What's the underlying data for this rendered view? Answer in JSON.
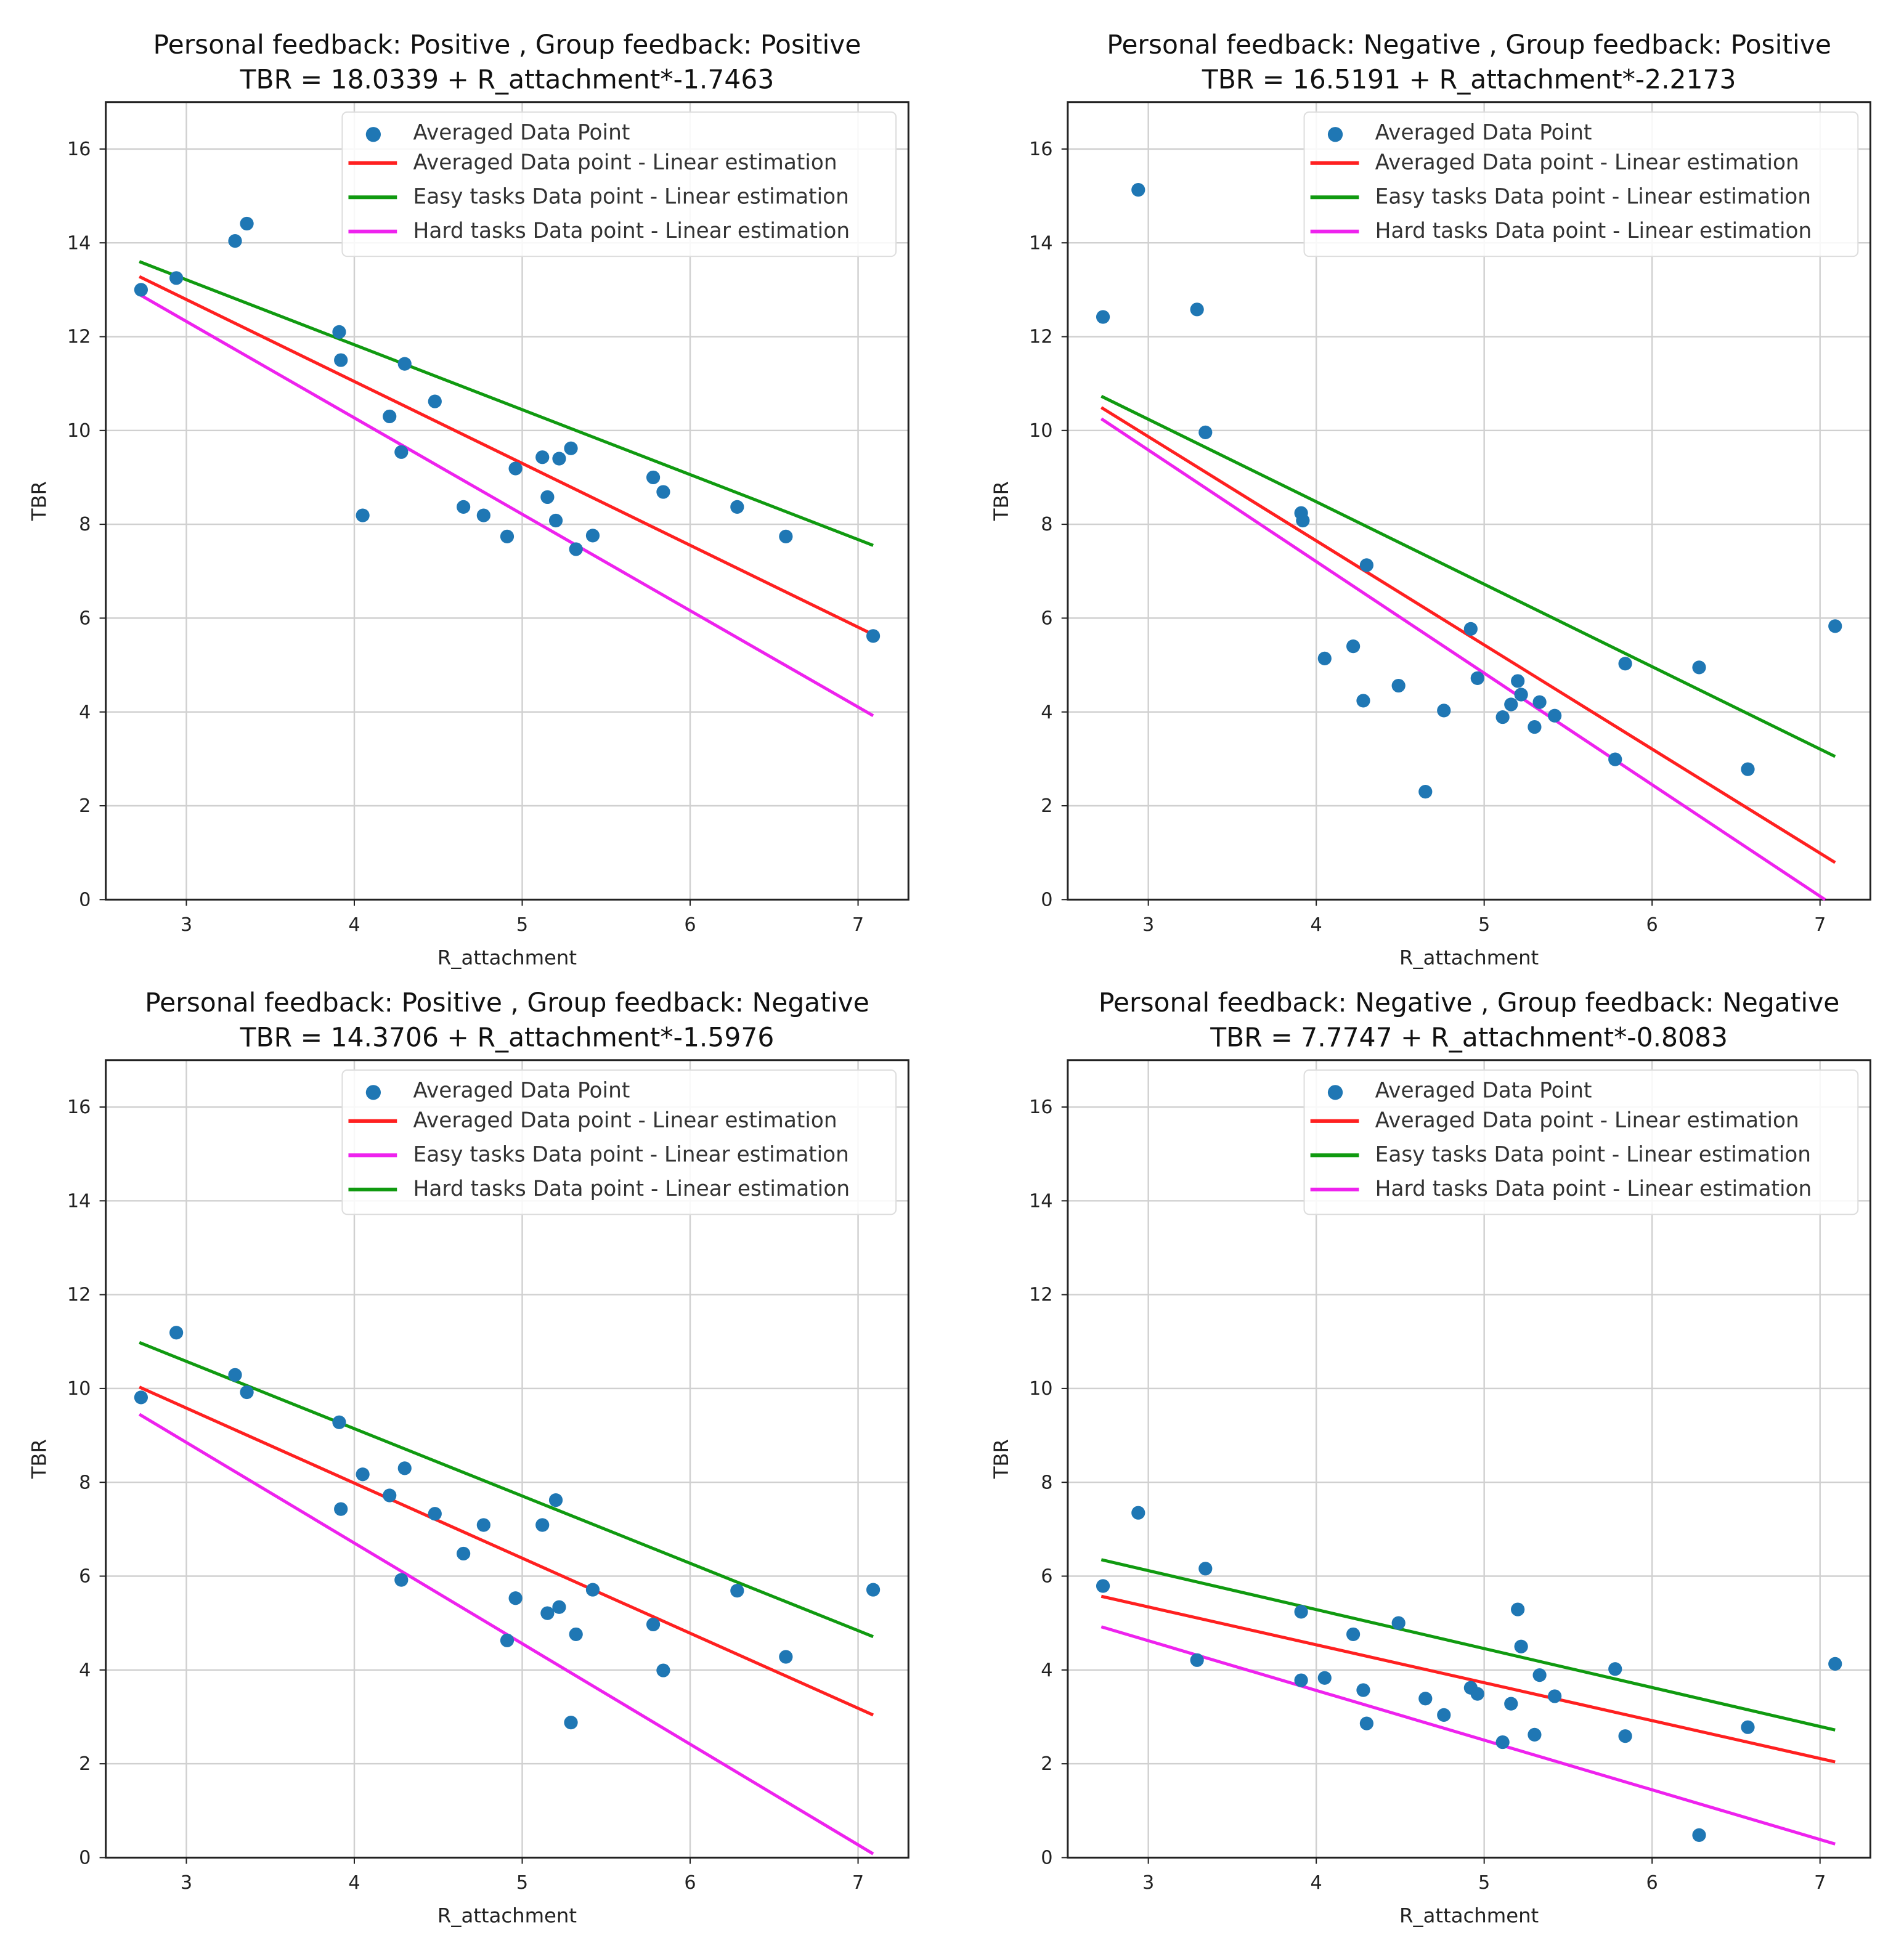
{
  "chart_data": [
    {
      "type": "scatter",
      "title": "Personal feedback: Positive , Group feedback: Positive",
      "subtitle": "TBR = 18.0339 + R_attachment*-1.7463",
      "xlabel": "R_attachment",
      "ylabel": "TBR",
      "xlim": [
        2.52,
        7.3
      ],
      "ylim": [
        0,
        17
      ],
      "xticks": [
        3,
        4,
        5,
        6,
        7
      ],
      "yticks": [
        0,
        2,
        4,
        6,
        8,
        10,
        12,
        14,
        16
      ],
      "grid": true,
      "legend_position": "top-right",
      "points": {
        "name": "Averaged Data Point",
        "color": "#1f77b4",
        "x": [
          2.73,
          2.94,
          3.29,
          3.36,
          3.91,
          3.92,
          4.05,
          4.21,
          4.28,
          4.3,
          4.48,
          4.65,
          4.77,
          4.91,
          4.96,
          5.12,
          5.15,
          5.2,
          5.22,
          5.29,
          5.32,
          5.42,
          5.78,
          5.84,
          6.28,
          6.57,
          7.09
        ],
        "y": [
          13.0,
          13.25,
          14.04,
          14.41,
          12.1,
          11.5,
          8.19,
          10.3,
          9.54,
          11.42,
          10.62,
          8.37,
          8.19,
          7.74,
          9.19,
          9.43,
          8.58,
          8.08,
          9.4,
          9.62,
          7.47,
          7.76,
          9.0,
          8.69,
          8.37,
          7.74,
          5.62
        ]
      },
      "lines": [
        {
          "name": "Averaged Data point  - Linear estimation",
          "color": "#ff2020",
          "x": [
            2.72,
            7.09
          ],
          "y": [
            13.28,
            5.65
          ]
        },
        {
          "name": "Easy tasks Data point  - Linear estimation",
          "color": "#109a10",
          "x": [
            2.72,
            7.09
          ],
          "y": [
            13.6,
            7.55
          ]
        },
        {
          "name": "Hard tasks Data point  - Linear estimation",
          "color": "#ee22ee",
          "x": [
            2.72,
            7.09
          ],
          "y": [
            12.9,
            3.92
          ]
        }
      ]
    },
    {
      "type": "scatter",
      "title": "Personal feedback: Negative , Group feedback: Positive",
      "subtitle": "TBR = 16.5191 + R_attachment*-2.2173",
      "xlabel": "R_attachment",
      "ylabel": "TBR",
      "xlim": [
        2.52,
        7.3
      ],
      "ylim": [
        0,
        17
      ],
      "xticks": [
        3,
        4,
        5,
        6,
        7
      ],
      "yticks": [
        0,
        2,
        4,
        6,
        8,
        10,
        12,
        14,
        16
      ],
      "grid": true,
      "legend_position": "top-right",
      "points": {
        "name": "Averaged Data Point",
        "color": "#1f77b4",
        "x": [
          2.73,
          2.94,
          3.29,
          3.34,
          3.91,
          3.92,
          4.05,
          4.22,
          4.28,
          4.3,
          4.49,
          4.65,
          4.76,
          4.92,
          4.96,
          5.11,
          5.16,
          5.2,
          5.22,
          5.3,
          5.33,
          5.42,
          5.78,
          5.84,
          6.28,
          6.57,
          7.09
        ],
        "y": [
          12.42,
          15.13,
          12.58,
          9.96,
          8.24,
          8.08,
          5.14,
          5.4,
          4.24,
          7.13,
          4.56,
          2.3,
          4.03,
          5.77,
          4.72,
          3.89,
          4.16,
          4.66,
          4.37,
          3.68,
          4.21,
          3.92,
          2.99,
          5.03,
          4.95,
          2.78,
          5.83
        ]
      },
      "lines": [
        {
          "name": "Averaged Data point  - Linear estimation",
          "color": "#ff2020",
          "x": [
            2.72,
            7.09
          ],
          "y": [
            10.49,
            0.79
          ]
        },
        {
          "name": "Easy tasks Data point  - Linear estimation",
          "color": "#109a10",
          "x": [
            2.72,
            7.09
          ],
          "y": [
            10.73,
            3.05
          ]
        },
        {
          "name": "Hard tasks Data point  - Linear estimation",
          "color": "#ee22ee",
          "x": [
            2.72,
            7.03
          ],
          "y": [
            10.25,
            0.0
          ]
        }
      ]
    },
    {
      "type": "scatter",
      "title": "Personal feedback: Positive , Group feedback: Negative",
      "subtitle": "TBR = 14.3706 + R_attachment*-1.5976",
      "xlabel": "R_attachment",
      "ylabel": "TBR",
      "xlim": [
        2.52,
        7.3
      ],
      "ylim": [
        0,
        17
      ],
      "xticks": [
        3,
        4,
        5,
        6,
        7
      ],
      "yticks": [
        0,
        2,
        4,
        6,
        8,
        10,
        12,
        14,
        16
      ],
      "grid": true,
      "legend_position": "top-right",
      "points": {
        "name": "Averaged Data Point",
        "color": "#1f77b4",
        "x": [
          2.73,
          2.94,
          3.29,
          3.36,
          3.91,
          3.92,
          4.05,
          4.21,
          4.28,
          4.3,
          4.48,
          4.65,
          4.77,
          4.91,
          4.96,
          5.12,
          5.15,
          5.2,
          5.22,
          5.29,
          5.32,
          5.42,
          5.78,
          5.84,
          6.28,
          6.57,
          7.09
        ],
        "y": [
          9.81,
          11.19,
          10.29,
          9.92,
          9.28,
          7.43,
          8.17,
          7.72,
          5.92,
          8.3,
          7.33,
          6.48,
          7.09,
          4.63,
          5.53,
          7.09,
          5.21,
          7.62,
          5.34,
          2.88,
          4.76,
          5.71,
          4.97,
          3.99,
          5.69,
          4.28,
          5.71
        ]
      },
      "lines": [
        {
          "name": "Averaged Data point  - Linear estimation",
          "color": "#ff2020",
          "x": [
            2.72,
            7.09
          ],
          "y": [
            10.03,
            3.04
          ]
        },
        {
          "name": "Easy tasks Data point  - Linear estimation",
          "color": "#ee22ee",
          "x": [
            2.72,
            7.09
          ],
          "y": [
            9.45,
            0.08
          ]
        },
        {
          "name": "Hard tasks Data point  - Linear estimation",
          "color": "#109a10",
          "x": [
            2.72,
            7.09
          ],
          "y": [
            10.98,
            4.71
          ]
        }
      ]
    },
    {
      "type": "scatter",
      "title": "Personal feedback: Negative , Group feedback: Negative",
      "subtitle": "TBR = 7.7747 + R_attachment*-0.8083",
      "xlabel": "R_attachment",
      "ylabel": "TBR",
      "xlim": [
        2.52,
        7.3
      ],
      "ylim": [
        0,
        17
      ],
      "xticks": [
        3,
        4,
        5,
        6,
        7
      ],
      "yticks": [
        0,
        2,
        4,
        6,
        8,
        10,
        12,
        14,
        16
      ],
      "grid": true,
      "legend_position": "top-right",
      "points": {
        "name": "Averaged Data Point",
        "color": "#1f77b4",
        "x": [
          2.73,
          2.94,
          3.29,
          3.34,
          3.91,
          3.91,
          4.05,
          4.22,
          4.28,
          4.3,
          4.49,
          4.65,
          4.76,
          4.92,
          4.96,
          5.11,
          5.16,
          5.2,
          5.22,
          5.3,
          5.33,
          5.42,
          5.78,
          5.84,
          6.28,
          6.57,
          7.09
        ],
        "y": [
          5.79,
          7.35,
          4.21,
          6.16,
          5.24,
          3.78,
          3.83,
          4.76,
          3.57,
          2.86,
          5.0,
          3.39,
          3.04,
          3.62,
          3.49,
          2.46,
          3.28,
          5.29,
          4.5,
          2.62,
          3.89,
          3.44,
          4.02,
          2.59,
          0.48,
          2.78,
          4.13
        ]
      },
      "lines": [
        {
          "name": "Averaged Data point  - Linear estimation",
          "color": "#ff2020",
          "x": [
            2.72,
            7.09
          ],
          "y": [
            5.57,
            2.04
          ]
        },
        {
          "name": "Easy tasks Data point  - Linear estimation",
          "color": "#109a10",
          "x": [
            2.72,
            7.09
          ],
          "y": [
            6.35,
            2.72
          ]
        },
        {
          "name": "Hard tasks Data point  - Linear estimation",
          "color": "#ee22ee",
          "x": [
            2.72,
            7.09
          ],
          "y": [
            4.92,
            0.29
          ]
        }
      ]
    }
  ]
}
